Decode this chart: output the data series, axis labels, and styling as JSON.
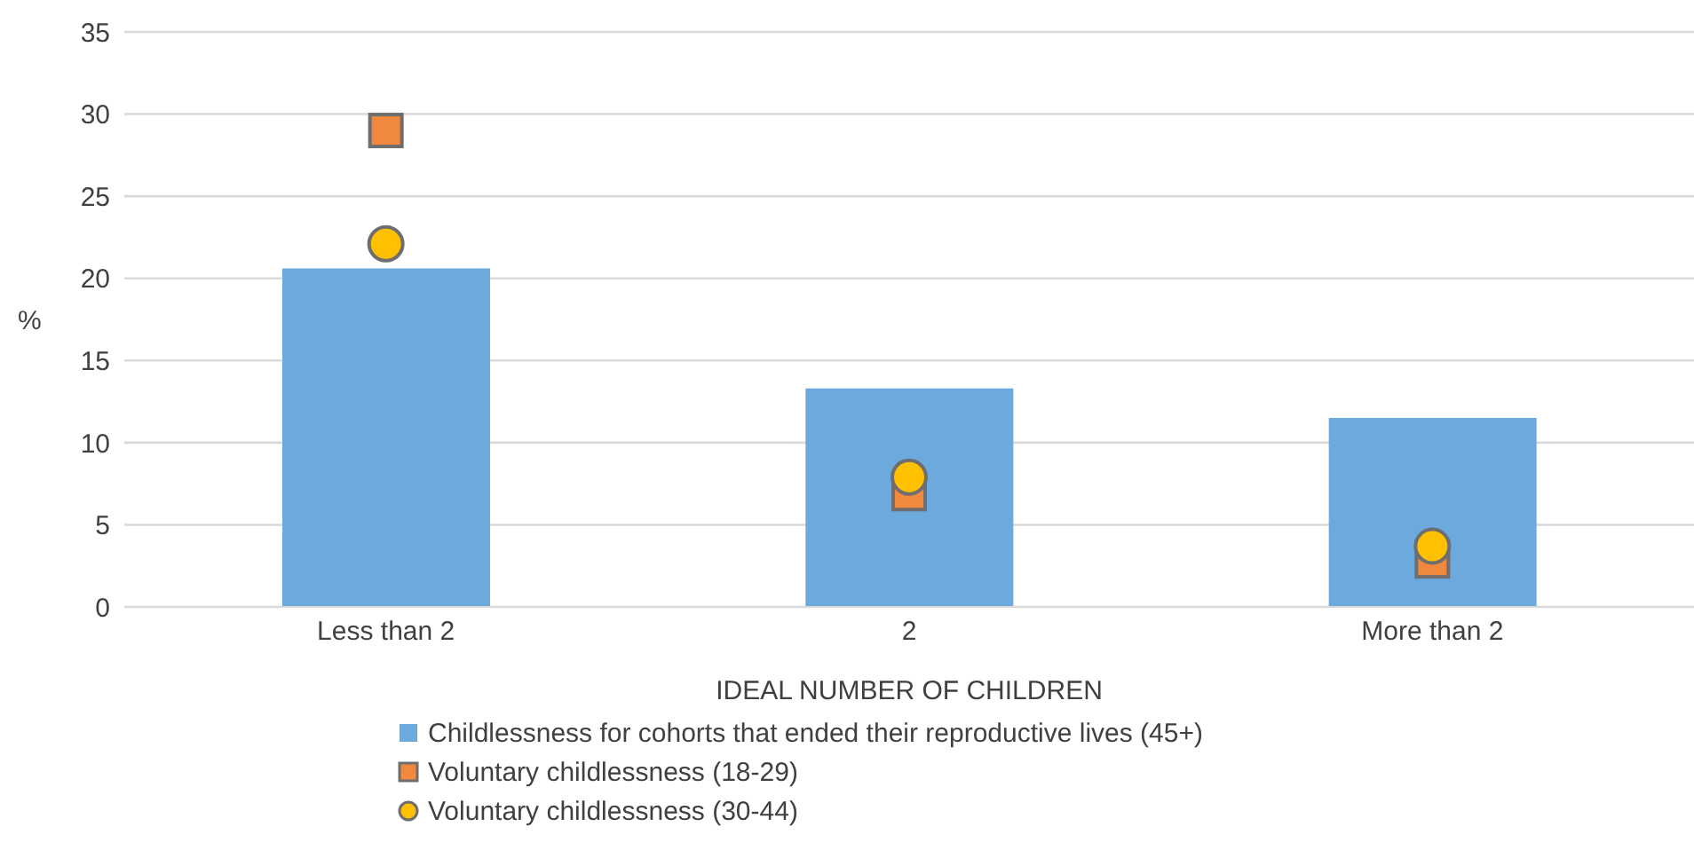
{
  "chart_data": {
    "type": "bar",
    "xlabel": "IDEAL NUMBER OF CHILDREN",
    "ylabel": "%",
    "categories": [
      "Less than 2",
      "2",
      "More than 2"
    ],
    "series": [
      {
        "name": "Childlessness for cohorts that ended their reproductive lives (45+)",
        "color": "#6ca9dc",
        "values": [
          20.6,
          13.3,
          11.5
        ]
      },
      {
        "name": "Voluntary childlessness (18-29)",
        "type": "scatter",
        "marker": "square",
        "color": "#f0883e",
        "values": [
          29,
          6.9,
          2.8
        ]
      },
      {
        "name": "Voluntary childlessness (30-44)",
        "type": "scatter",
        "marker": "circle",
        "color": "#ffc000",
        "values": [
          22.1,
          7.9,
          3.7
        ]
      }
    ],
    "ylim": [
      0,
      35
    ],
    "yticks": [
      0,
      5,
      10,
      15,
      20,
      25,
      30,
      35
    ],
    "grid": "y",
    "legend": "bottom"
  }
}
